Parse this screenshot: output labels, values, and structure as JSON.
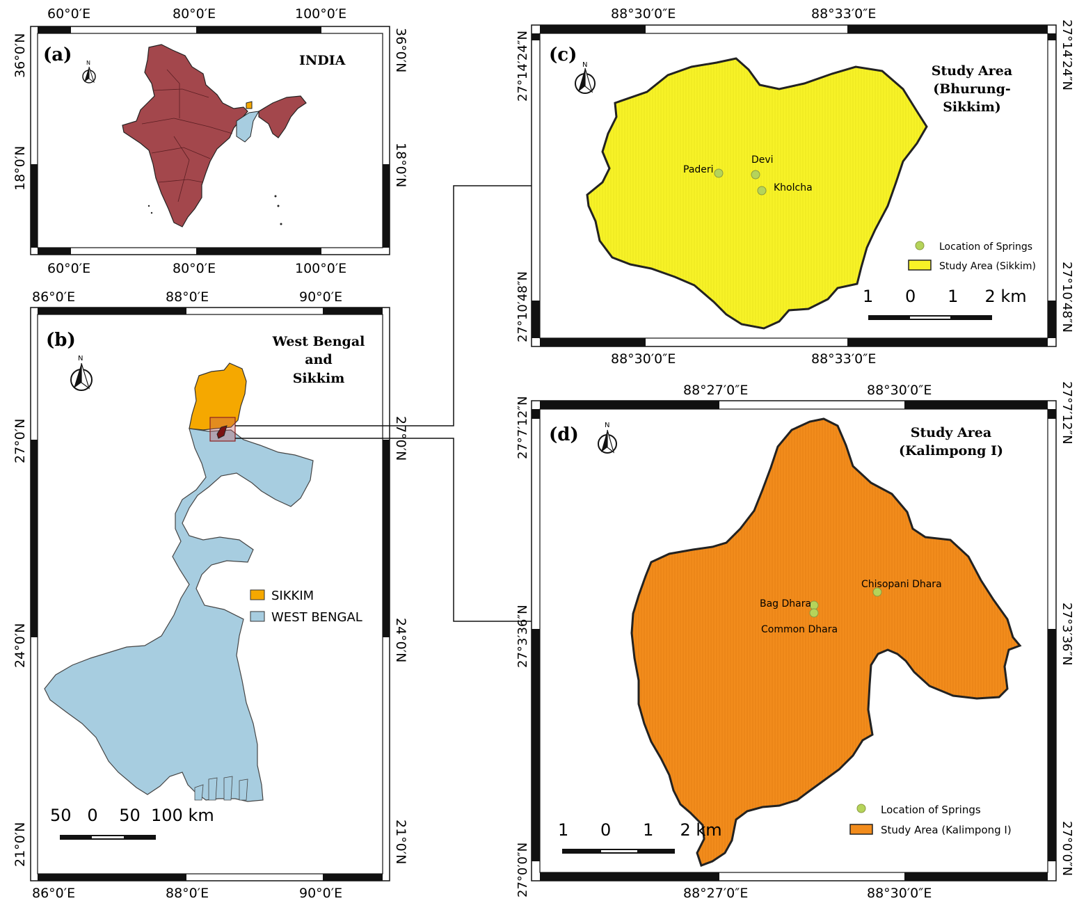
{
  "colors": {
    "india": "#a3474c",
    "sikkim": "#f5a800",
    "west_bengal": "#a7cde0",
    "study_sikkim": "#f7f227",
    "study_kalimpong": "#f28c1c",
    "spring": "#b5d45a"
  },
  "panel_a": {
    "label": "(a)",
    "title": "INDIA",
    "top_ticks": [
      "60°0′E",
      "80°0′E",
      "100°0′E"
    ],
    "bottom_ticks": [
      "60°0′E",
      "80°0′E",
      "100°0′E"
    ],
    "left_ticks": [
      "36°0′N",
      "18°0′N"
    ],
    "right_ticks": [
      "36°0′N",
      "18°0′N"
    ],
    "north": "N"
  },
  "panel_b": {
    "label": "(b)",
    "title_lines": [
      "West Bengal",
      "and",
      "Sikkim"
    ],
    "top_ticks": [
      "86°0′E",
      "88°0′E",
      "90°0′E"
    ],
    "bottom_ticks": [
      "86°0′E",
      "88°0′E",
      "90°0′E"
    ],
    "left_ticks": [
      "27°0′N",
      "24°0′N",
      "21°0′N"
    ],
    "right_ticks": [
      "27°0′N",
      "24°0′N",
      "21°0′N"
    ],
    "legend": [
      {
        "label": "SIKKIM",
        "color": "#f5a800"
      },
      {
        "label": "WEST BENGAL",
        "color": "#a7cde0"
      }
    ],
    "scale": "50   0    50  100 km",
    "north": "N"
  },
  "panel_c": {
    "label": "(c)",
    "title_lines": [
      "Study Area",
      "(Bhurung-",
      "Sikkim)"
    ],
    "top_ticks": [
      "88°30′0″E",
      "88°33′0″E"
    ],
    "bottom_ticks": [
      "88°30′0″E",
      "88°33′0″E"
    ],
    "left_ticks": [
      "27°14′24″N",
      "27°10′48″N"
    ],
    "right_ticks": [
      "27°14′24″N",
      "27°10′48″N"
    ],
    "springs": [
      {
        "name": "Paderi"
      },
      {
        "name": "Devi"
      },
      {
        "name": "Kholcha"
      }
    ],
    "legend": [
      {
        "label": "Location of Springs"
      },
      {
        "label": "Study Area (Sikkim)"
      }
    ],
    "scale": "1      0      1     2 km",
    "north": "N"
  },
  "panel_d": {
    "label": "(d)",
    "title_lines": [
      "Study Area",
      "(Kalimpong I)"
    ],
    "top_ticks": [
      "88°27′0″E",
      "88°30′0″E"
    ],
    "bottom_ticks": [
      "88°27′0″E",
      "88°30′0″E"
    ],
    "left_ticks": [
      "27°7′12″N",
      "27°3′36″N",
      "27°0′0″N"
    ],
    "right_ticks": [
      "27°7′12″N",
      "27°3′36″N",
      "27°0′0″N"
    ],
    "springs": [
      {
        "name": "Chisopani Dhara"
      },
      {
        "name": "Bag Dhara"
      },
      {
        "name": "Common Dhara"
      }
    ],
    "legend": [
      {
        "label": "Location of Springs"
      },
      {
        "label": "Study Area (Kalimpong I)"
      }
    ],
    "scale": "1      0      1     2 km",
    "north": "N"
  }
}
